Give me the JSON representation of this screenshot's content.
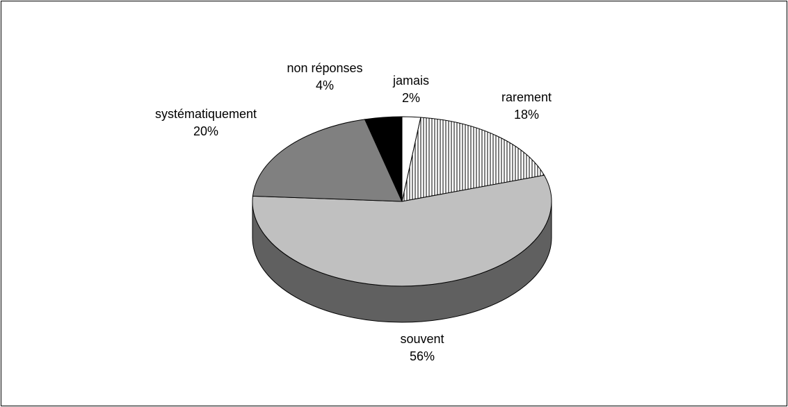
{
  "chart_data": {
    "type": "pie",
    "title": "",
    "slices": [
      {
        "category": "jamais",
        "value": 2,
        "percent_label": "2%",
        "fill": "#ffffff",
        "pattern": "none"
      },
      {
        "category": "rarement",
        "value": 18,
        "percent_label": "18%",
        "fill": "#ffffff",
        "pattern": "vertical-stripes"
      },
      {
        "category": "souvent",
        "value": 56,
        "percent_label": "56%",
        "fill": "#c0c0c0",
        "side_fill": "#606060",
        "pattern": "none"
      },
      {
        "category": "systématiquement",
        "value": 20,
        "percent_label": "20%",
        "fill": "#808080",
        "pattern": "none"
      },
      {
        "category": "non réponses",
        "value": 4,
        "percent_label": "4%",
        "fill": "#000000",
        "pattern": "none"
      }
    ],
    "style": "3d",
    "legend": "none",
    "data_labels": "category and percent, outside slices"
  }
}
